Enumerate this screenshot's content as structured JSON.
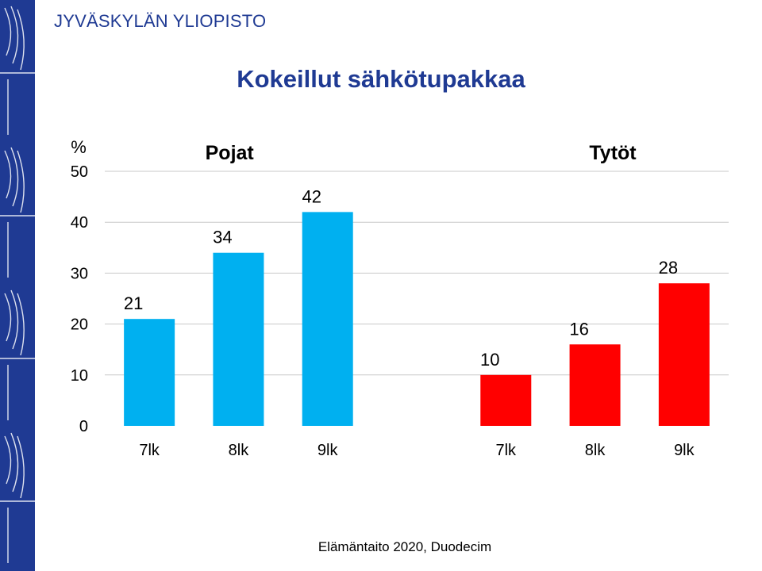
{
  "header": {
    "university": "JYVÄSKYLÄN YLIOPISTO",
    "title": "Kokeillut sähkötupakkaa"
  },
  "footer": {
    "credit": "Elämäntaito 2020, Duodecim"
  },
  "colors": {
    "sidebar": "#1f3a93",
    "brand_text": "#1f3a93",
    "boys": "#00b0f0",
    "girls": "#ff0000",
    "grid": "#c8c8c8"
  },
  "chart_data": {
    "type": "bar",
    "ylabel": "%",
    "ylim": [
      0,
      50
    ],
    "yticks": [
      0,
      10,
      20,
      30,
      40,
      50
    ],
    "grid": true,
    "groups": [
      {
        "name": "Pojat",
        "color": "#00b0f0",
        "categories": [
          "7lk",
          "8lk",
          "9lk"
        ],
        "values": [
          21,
          34,
          42
        ],
        "labels": [
          "21",
          "34",
          "42"
        ]
      },
      {
        "name": "Tytöt",
        "color": "#ff0000",
        "categories": [
          "7lk",
          "8lk",
          "9lk"
        ],
        "values": [
          10,
          16,
          28
        ],
        "labels": [
          "10",
          "16",
          "28"
        ]
      }
    ]
  }
}
